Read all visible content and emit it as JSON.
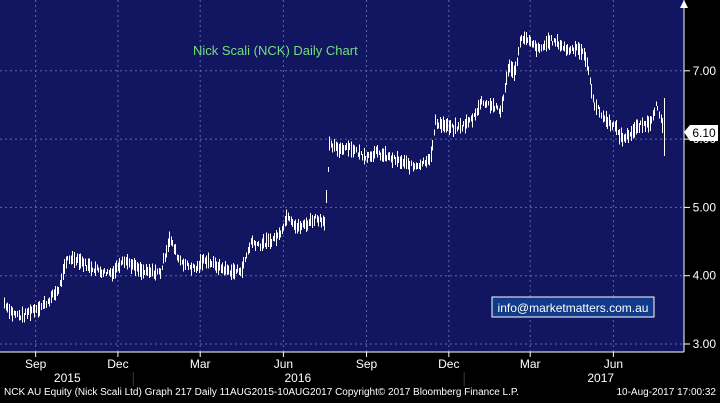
{
  "chart_data": {
    "type": "bar",
    "title": "Nick Scali (NCK) Daily Chart",
    "watermark": "info@marketmatters.com.au",
    "last_price_label": "6.10",
    "xlabel": "",
    "ylabel": "",
    "ylim": [
      2.9,
      8.0
    ],
    "y_ticks": [
      "3.00",
      "4.00",
      "5.00",
      "6.00",
      "7.00"
    ],
    "x_ticks": [
      "Sep",
      "Dec",
      "Mar",
      "Jun",
      "Sep",
      "Dec",
      "Mar",
      "Jun"
    ],
    "years": [
      "2015",
      "2016",
      "2017"
    ],
    "grid": true,
    "colors": {
      "plot_bg": "#121560",
      "bars": "#ffffff",
      "title": "#6fe07a",
      "grid": "#5a6ab0"
    },
    "x_start_date": "2015-08-11",
    "x_end_date": "2017-08-10",
    "daily_prices": [
      [
        "2015-08-11",
        3.6
      ],
      [
        "2015-08-20",
        3.45
      ],
      [
        "2015-08-31",
        3.4
      ],
      [
        "2015-09-10",
        3.5
      ],
      [
        "2015-09-21",
        3.55
      ],
      [
        "2015-09-30",
        3.65
      ],
      [
        "2015-10-10",
        3.8
      ],
      [
        "2015-10-20",
        4.25
      ],
      [
        "2015-10-31",
        4.25
      ],
      [
        "2015-11-10",
        4.15
      ],
      [
        "2015-11-20",
        4.1
      ],
      [
        "2015-11-30",
        4.05
      ],
      [
        "2015-12-10",
        4.05
      ],
      [
        "2015-12-20",
        4.25
      ],
      [
        "2015-12-31",
        4.15
      ],
      [
        "2016-01-10",
        4.05
      ],
      [
        "2016-01-20",
        4.05
      ],
      [
        "2016-01-31",
        4.05
      ],
      [
        "2016-02-10",
        4.55
      ],
      [
        "2016-02-20",
        4.25
      ],
      [
        "2016-02-29",
        4.15
      ],
      [
        "2016-03-10",
        4.1
      ],
      [
        "2016-03-20",
        4.25
      ],
      [
        "2016-03-31",
        4.15
      ],
      [
        "2016-04-10",
        4.1
      ],
      [
        "2016-04-20",
        4.05
      ],
      [
        "2016-04-30",
        4.1
      ],
      [
        "2016-05-10",
        4.5
      ],
      [
        "2016-05-20",
        4.45
      ],
      [
        "2016-05-31",
        4.5
      ],
      [
        "2016-06-10",
        4.6
      ],
      [
        "2016-06-20",
        4.9
      ],
      [
        "2016-06-30",
        4.7
      ],
      [
        "2016-07-10",
        4.75
      ],
      [
        "2016-07-20",
        4.85
      ],
      [
        "2016-07-30",
        4.8
      ],
      [
        "2016-08-05",
        5.9
      ],
      [
        "2016-08-15",
        5.85
      ],
      [
        "2016-08-25",
        5.9
      ],
      [
        "2016-09-05",
        5.8
      ],
      [
        "2016-09-15",
        5.75
      ],
      [
        "2016-09-25",
        5.8
      ],
      [
        "2016-10-05",
        5.75
      ],
      [
        "2016-10-15",
        5.7
      ],
      [
        "2016-10-25",
        5.65
      ],
      [
        "2016-11-05",
        5.6
      ],
      [
        "2016-11-15",
        5.65
      ],
      [
        "2016-11-25",
        5.75
      ],
      [
        "2016-11-30",
        6.25
      ],
      [
        "2016-12-10",
        6.2
      ],
      [
        "2016-12-20",
        6.15
      ],
      [
        "2016-12-31",
        6.2
      ],
      [
        "2017-01-10",
        6.3
      ],
      [
        "2017-01-20",
        6.55
      ],
      [
        "2017-01-31",
        6.5
      ],
      [
        "2017-02-10",
        6.4
      ],
      [
        "2017-02-20",
        7.1
      ],
      [
        "2017-02-25",
        6.95
      ],
      [
        "2017-03-05",
        7.5
      ],
      [
        "2017-03-15",
        7.4
      ],
      [
        "2017-03-25",
        7.3
      ],
      [
        "2017-04-05",
        7.45
      ],
      [
        "2017-04-15",
        7.4
      ],
      [
        "2017-04-25",
        7.3
      ],
      [
        "2017-05-05",
        7.35
      ],
      [
        "2017-05-15",
        7.2
      ],
      [
        "2017-05-25",
        6.5
      ],
      [
        "2017-06-05",
        6.3
      ],
      [
        "2017-06-15",
        6.2
      ],
      [
        "2017-06-25",
        6.0
      ],
      [
        "2017-07-05",
        6.1
      ],
      [
        "2017-07-15",
        6.2
      ],
      [
        "2017-07-25",
        6.25
      ],
      [
        "2017-08-01",
        6.5
      ],
      [
        "2017-08-10",
        6.1
      ]
    ]
  },
  "footer": {
    "left": "NCK AU Equity (Nick Scali Ltd) Graph 217  Daily 11AUG2015-10AUG2017  Copyright© 2017 Bloomberg Finance L.P.",
    "right": "10-Aug-2017 17:00:32"
  }
}
